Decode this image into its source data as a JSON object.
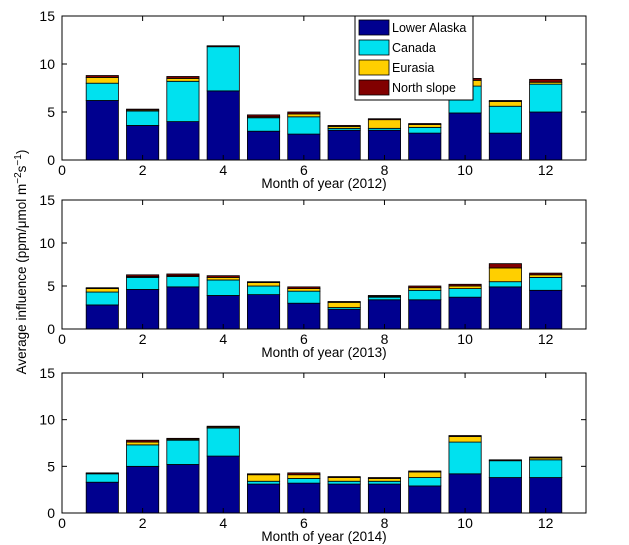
{
  "figure": {
    "ylabel": "Average influence (ppm/μmol m",
    "ylabel_sup1": "−2",
    "ylabel_mid": "s",
    "ylabel_sup2": "−1",
    "ylabel_end": ")"
  },
  "chart_data": [
    {
      "type": "bar",
      "stacked": true,
      "xlabel": "Month of year (2012)",
      "ylabel": "",
      "xlim": [
        0,
        13
      ],
      "ylim": [
        0,
        15
      ],
      "xticks": [
        0,
        2,
        4,
        6,
        8,
        10,
        12
      ],
      "yticks": [
        0,
        5,
        10,
        15
      ],
      "grid": false,
      "legend_position": "top-center",
      "categories": [
        1,
        2,
        3,
        4,
        5,
        6,
        7,
        8,
        9,
        10,
        11,
        12
      ],
      "series": [
        {
          "name": "Lower Alaska",
          "color": "#00008f",
          "values": [
            6.2,
            3.6,
            4.0,
            7.2,
            3.0,
            2.7,
            3.1,
            3.1,
            2.8,
            4.9,
            2.8,
            5.0
          ]
        },
        {
          "name": "Canada",
          "color": "#00e1ef",
          "values": [
            1.8,
            1.5,
            4.2,
            4.6,
            1.4,
            1.8,
            0.2,
            0.2,
            0.6,
            2.8,
            2.8,
            2.9
          ]
        },
        {
          "name": "Eurasia",
          "color": "#ffcf00",
          "values": [
            0.6,
            0.1,
            0.3,
            0.0,
            0.1,
            0.3,
            0.2,
            0.9,
            0.3,
            0.6,
            0.5,
            0.2
          ]
        },
        {
          "name": "North slope",
          "color": "#810000",
          "values": [
            0.2,
            0.1,
            0.2,
            0.1,
            0.2,
            0.2,
            0.1,
            0.1,
            0.1,
            0.2,
            0.1,
            0.3
          ]
        }
      ]
    },
    {
      "type": "bar",
      "stacked": true,
      "xlabel": "Month of year (2013)",
      "ylabel": "",
      "xlim": [
        0,
        13
      ],
      "ylim": [
        0,
        15
      ],
      "xticks": [
        0,
        2,
        4,
        6,
        8,
        10,
        12
      ],
      "yticks": [
        0,
        5,
        10,
        15
      ],
      "grid": false,
      "categories": [
        1,
        2,
        3,
        4,
        5,
        6,
        7,
        8,
        9,
        10,
        11,
        12
      ],
      "series": [
        {
          "name": "Lower Alaska",
          "color": "#00008f",
          "values": [
            2.8,
            4.6,
            4.9,
            3.9,
            4.0,
            3.0,
            2.3,
            3.4,
            3.4,
            3.7,
            4.9,
            4.5
          ]
        },
        {
          "name": "Canada",
          "color": "#00e1ef",
          "values": [
            1.5,
            1.4,
            1.2,
            1.8,
            1.0,
            1.4,
            0.2,
            0.3,
            1.1,
            1.0,
            0.6,
            1.5
          ]
        },
        {
          "name": "Eurasia",
          "color": "#ffcf00",
          "values": [
            0.4,
            0.1,
            0.1,
            0.3,
            0.4,
            0.3,
            0.6,
            0.1,
            0.3,
            0.3,
            1.6,
            0.3
          ]
        },
        {
          "name": "North slope",
          "color": "#810000",
          "values": [
            0.1,
            0.2,
            0.2,
            0.2,
            0.1,
            0.2,
            0.1,
            0.1,
            0.2,
            0.2,
            0.5,
            0.2
          ]
        }
      ]
    },
    {
      "type": "bar",
      "stacked": true,
      "xlabel": "Month of year (2014)",
      "ylabel": "",
      "xlim": [
        0,
        13
      ],
      "ylim": [
        0,
        15
      ],
      "xticks": [
        0,
        2,
        4,
        6,
        8,
        10,
        12
      ],
      "yticks": [
        0,
        5,
        10,
        15
      ],
      "grid": false,
      "categories": [
        1,
        2,
        3,
        4,
        5,
        6,
        7,
        8,
        9,
        10,
        11,
        12
      ],
      "series": [
        {
          "name": "Lower Alaska",
          "color": "#00008f",
          "values": [
            3.3,
            5.0,
            5.2,
            6.1,
            3.1,
            3.2,
            3.1,
            3.1,
            2.9,
            4.2,
            3.8,
            3.8
          ]
        },
        {
          "name": "Canada",
          "color": "#00e1ef",
          "values": [
            0.9,
            2.3,
            2.6,
            3.0,
            0.3,
            0.5,
            0.3,
            0.3,
            0.9,
            3.4,
            1.8,
            1.9
          ]
        },
        {
          "name": "Eurasia",
          "color": "#ffcf00",
          "values": [
            0.0,
            0.3,
            0.1,
            0.1,
            0.7,
            0.4,
            0.4,
            0.3,
            0.6,
            0.6,
            0.0,
            0.2
          ]
        },
        {
          "name": "North slope",
          "color": "#810000",
          "values": [
            0.1,
            0.2,
            0.1,
            0.1,
            0.1,
            0.2,
            0.1,
            0.1,
            0.1,
            0.1,
            0.1,
            0.1
          ]
        }
      ]
    }
  ]
}
